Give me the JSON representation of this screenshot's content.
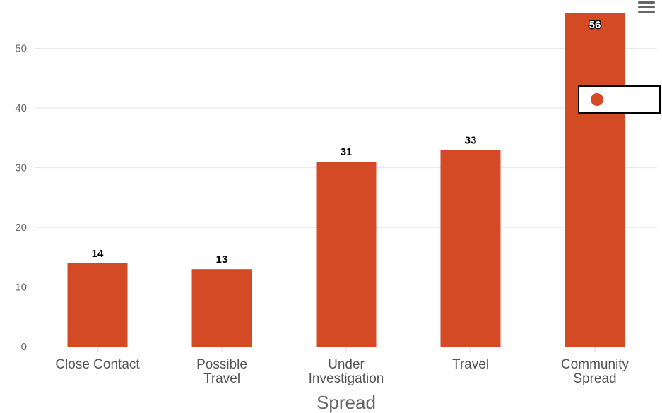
{
  "chart_data": {
    "type": "bar",
    "categories": [
      "Close Contact",
      "Possible Travel",
      "Under Investigation",
      "Travel",
      "Community Spread"
    ],
    "category_lines": [
      [
        "Close Contact"
      ],
      [
        "Possible",
        "Travel"
      ],
      [
        "Under",
        "Investigation"
      ],
      [
        "Travel"
      ],
      [
        "Community",
        "Spread"
      ]
    ],
    "series": [
      {
        "name": "",
        "values": [
          14,
          13,
          31,
          33,
          56
        ],
        "color": "#d44a25"
      }
    ],
    "xlabel": "Spread",
    "ylabel": "",
    "ylim": [
      0,
      56
    ],
    "yticks": [
      0,
      10,
      20,
      30,
      40,
      50
    ],
    "grid": true,
    "legend_position": "top-right",
    "data_labels": true
  },
  "menu": {
    "icon": "hamburger-menu-icon"
  }
}
